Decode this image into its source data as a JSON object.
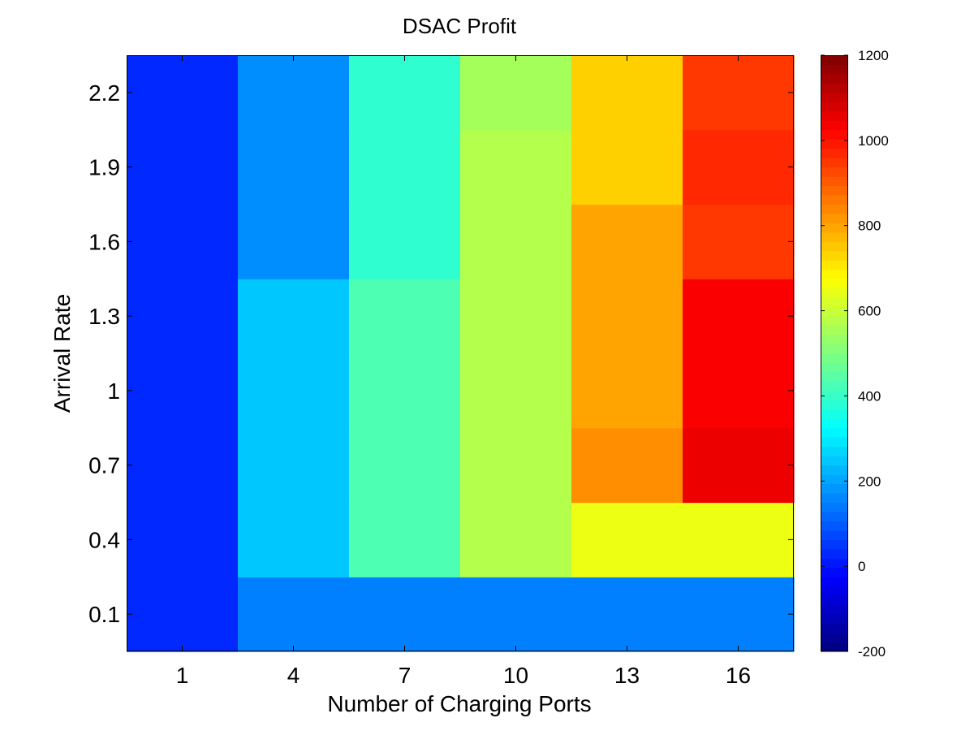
{
  "chart_data": {
    "type": "heatmap",
    "title": "DSAC Profit",
    "xlabel": "Number of Charging Ports",
    "ylabel": "Arrival Rate",
    "x": [
      1,
      4,
      7,
      10,
      13,
      16
    ],
    "x_tick_labels": [
      "1",
      "4",
      "7",
      "10",
      "13",
      "16"
    ],
    "y": [
      0.1,
      0.4,
      0.7,
      1.0,
      1.3,
      1.6,
      1.9,
      2.2
    ],
    "y_tick_labels": [
      "0.1",
      "0.4",
      "0.7",
      "1",
      "1.3",
      "1.6",
      "1.9",
      "2.2"
    ],
    "values": [
      [
        30,
        150,
        150,
        150,
        150,
        150
      ],
      [
        30,
        250,
        430,
        570,
        650,
        650
      ],
      [
        30,
        250,
        430,
        570,
        830,
        1050
      ],
      [
        30,
        250,
        430,
        570,
        800,
        1030
      ],
      [
        30,
        250,
        430,
        570,
        800,
        1030
      ],
      [
        30,
        170,
        390,
        570,
        800,
        950
      ],
      [
        30,
        170,
        390,
        570,
        740,
        970
      ],
      [
        30,
        170,
        390,
        550,
        740,
        950
      ]
    ],
    "colormap": "jet",
    "clim": [
      -200,
      1200
    ],
    "colorbar": {
      "ticks": [
        -200,
        0,
        200,
        400,
        600,
        800,
        1000,
        1200
      ],
      "tick_labels": [
        "-200",
        "0",
        "200",
        "400",
        "600",
        "800",
        "1000",
        "1200"
      ],
      "position": "right"
    },
    "grid": false
  }
}
